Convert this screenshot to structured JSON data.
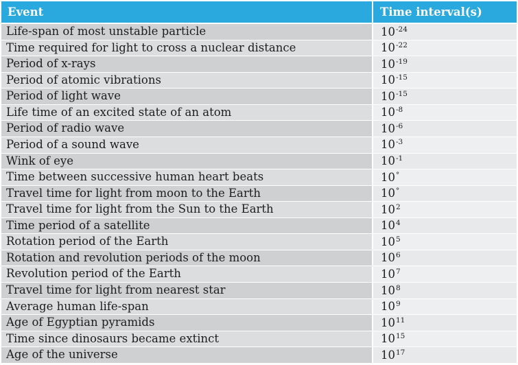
{
  "table": {
    "headers": [
      "Event",
      "Time interval(s)"
    ],
    "rows": [
      {
        "event": "Life-span of most unstable particle",
        "base": "10",
        "exp": "-24"
      },
      {
        "event": "Time required for light to cross a nuclear distance",
        "base": "10",
        "exp": "-22"
      },
      {
        "event": "Period of x-rays",
        "base": "10",
        "exp": "-19"
      },
      {
        "event": "Period of atomic vibrations",
        "base": "10",
        "exp": "-15"
      },
      {
        "event": "Period of light wave",
        "base": "10",
        "exp": "-15"
      },
      {
        "event": "Life time of an excited state of an atom",
        "base": "10",
        "exp": "-8"
      },
      {
        "event": "Period of radio wave",
        "base": "10",
        "exp": "-6"
      },
      {
        "event": "Period of a sound wave",
        "base": "10",
        "exp": "-3"
      },
      {
        "event": "Wink of eye",
        "base": "10",
        "exp": "-1"
      },
      {
        "event": "Time between successive human heart beats",
        "base": "10",
        "exp": "°"
      },
      {
        "event": "Travel time for light from moon to the Earth",
        "base": "10",
        "exp": "°"
      },
      {
        "event": "Travel time for light from the Sun to the Earth",
        "base": "10",
        "exp": "2"
      },
      {
        "event": "Time period of a satellite",
        "base": "10",
        "exp": "4"
      },
      {
        "event": "Rotation period of the Earth",
        "base": "10",
        "exp": "5"
      },
      {
        "event": "Rotation and revolution periods of the moon",
        "base": "10",
        "exp": "6"
      },
      {
        "event": "Revolution period of the Earth",
        "base": "10",
        "exp": "7"
      },
      {
        "event": "Travel time for light from nearest star",
        "base": "10",
        "exp": "8"
      },
      {
        "event": "Average human life-span",
        "base": "10",
        "exp": "9"
      },
      {
        "event": "Age of Egyptian pyramids",
        "base": "10",
        "exp": "11"
      },
      {
        "event": "Time since dinosaurs became extinct",
        "base": "10",
        "exp": "15"
      },
      {
        "event": "Age of the universe",
        "base": "10",
        "exp": "17"
      }
    ]
  },
  "colors": {
    "header_bg": "#2aa9df",
    "event_col_bg": "#cfd0d2",
    "value_col_bg": "#e8e9ea"
  }
}
